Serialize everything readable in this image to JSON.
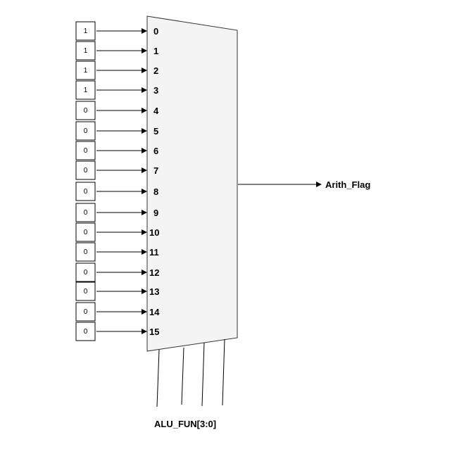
{
  "mux": {
    "inputs": [
      {
        "bit": "1",
        "index": "0"
      },
      {
        "bit": "1",
        "index": "1"
      },
      {
        "bit": "1",
        "index": "2"
      },
      {
        "bit": "1",
        "index": "3"
      },
      {
        "bit": "0",
        "index": "4"
      },
      {
        "bit": "0",
        "index": "5"
      },
      {
        "bit": "0",
        "index": "6"
      },
      {
        "bit": "0",
        "index": "7"
      },
      {
        "bit": "0",
        "index": "8"
      },
      {
        "bit": "0",
        "index": "9"
      },
      {
        "bit": "0",
        "index": "10"
      },
      {
        "bit": "0",
        "index": "11"
      },
      {
        "bit": "0",
        "index": "12"
      },
      {
        "bit": "0",
        "index": "13"
      },
      {
        "bit": "0",
        "index": "14"
      },
      {
        "bit": "0",
        "index": "15"
      }
    ],
    "output_label": "Arith_Flag",
    "select_label": "ALU_FUN[3:0]"
  }
}
